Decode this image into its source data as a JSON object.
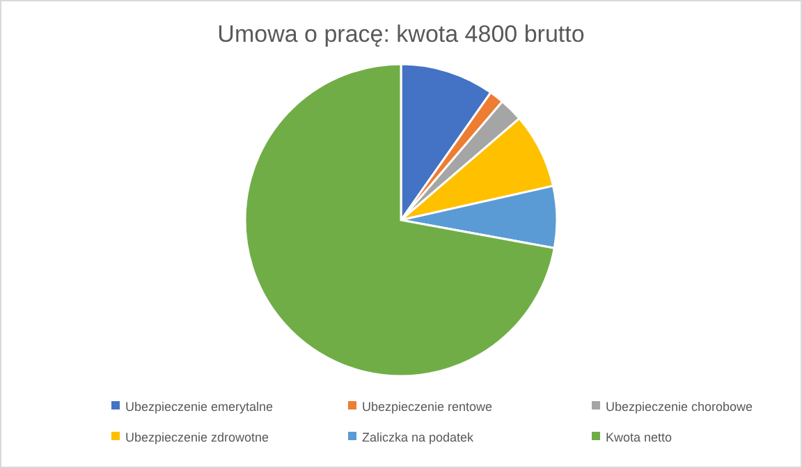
{
  "chart_data": {
    "type": "pie",
    "title": "Umowa o pracę: kwota 4800 brutto",
    "categories": [
      "Ubezpieczenie emerytalne",
      "Ubezpieczenie rentowe",
      "Ubezpieczenie chorobowe",
      "Ubezpieczenie zdrowotne",
      "Zaliczka na podatek",
      "Kwota netto"
    ],
    "values": [
      9.76,
      1.5,
      2.45,
      7.77,
      6.4,
      72.12
    ],
    "colors": [
      "#4472c4",
      "#ed7d31",
      "#a5a5a5",
      "#ffc000",
      "#5b9bd5",
      "#70ad47"
    ],
    "legend": "bottom"
  }
}
